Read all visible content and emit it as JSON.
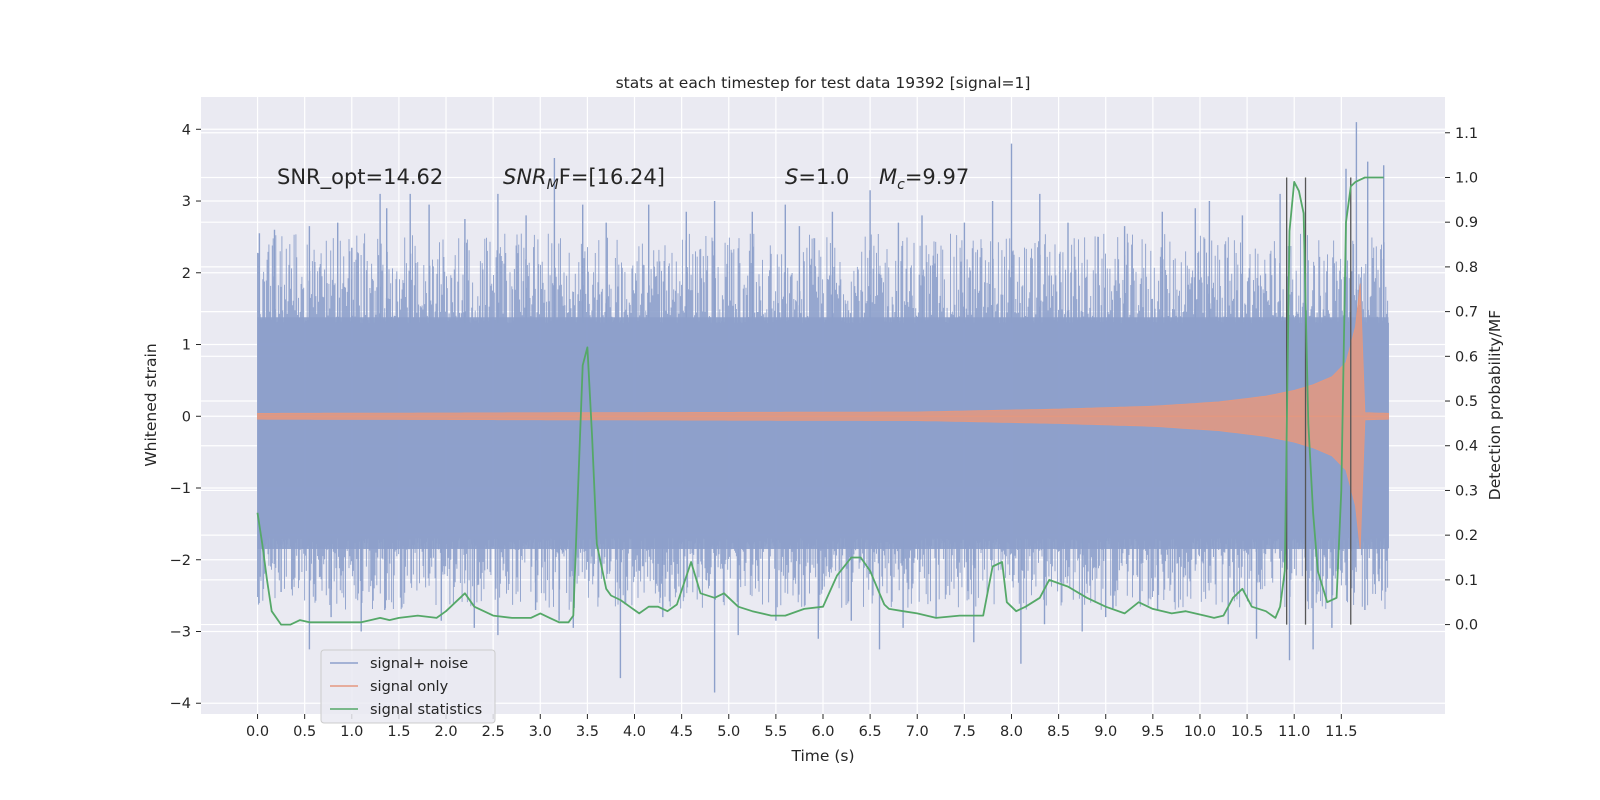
{
  "chart_data": {
    "type": "line",
    "title": "stats at each timestep for test data 19392 [signal=1]",
    "xlabel": "Time (s)",
    "ylabel": "Whitened strain",
    "y2label": "Detection probability/MF",
    "xlim": [
      -0.6,
      12.6
    ],
    "ylim": [
      -4.15,
      4.45
    ],
    "y2lim": [
      -0.2,
      1.18
    ],
    "x_ticks": [
      "0.0",
      "0.5",
      "1.0",
      "1.5",
      "2.0",
      "2.5",
      "3.0",
      "3.5",
      "4.0",
      "4.5",
      "5.0",
      "5.5",
      "6.0",
      "6.5",
      "7.0",
      "7.5",
      "8.0",
      "8.5",
      "9.0",
      "9.5",
      "10.0",
      "10.5",
      "11.0",
      "11.5"
    ],
    "y_ticks": [
      "4",
      "3",
      "2",
      "1",
      "0",
      "−1",
      "−2",
      "−3",
      "−4"
    ],
    "y2_ticks": [
      "1.1",
      "1.0",
      "0.9",
      "0.8",
      "0.7",
      "0.6",
      "0.5",
      "0.4",
      "0.3",
      "0.2",
      "0.1",
      "0.0"
    ],
    "grid": true,
    "legend_position": "lower-left",
    "annotations": {
      "snr_opt": "SNR_opt=14.62",
      "snr_mf_sym": "SNR",
      "snr_mf_sub": "M",
      "snr_mf_rest": "F=[16.24]",
      "s_sym": "S",
      "s_rest": "=1.0",
      "mc_sym": "M",
      "mc_sub": "c",
      "mc_rest": "=9.97"
    },
    "series": [
      {
        "name": "signal+ noise",
        "color": "#8da0cb",
        "noise_band": [
          -1.85,
          1.38
        ],
        "time_range": [
          0.0,
          12.0
        ],
        "spikes": [
          [
            0.02,
            2.55
          ],
          [
            0.18,
            2.6
          ],
          [
            0.55,
            2.65
          ],
          [
            0.85,
            2.7
          ],
          [
            1.0,
            2.35
          ],
          [
            1.3,
            3.1
          ],
          [
            1.37,
            2.9
          ],
          [
            1.62,
            3.1
          ],
          [
            1.82,
            2.95
          ],
          [
            2.2,
            2.75
          ],
          [
            2.55,
            3.1
          ],
          [
            2.85,
            2.8
          ],
          [
            3.15,
            3.6
          ],
          [
            3.45,
            2.95
          ],
          [
            3.7,
            2.7
          ],
          [
            4.15,
            2.95
          ],
          [
            4.55,
            2.85
          ],
          [
            4.85,
            3.0
          ],
          [
            5.25,
            2.85
          ],
          [
            5.6,
            2.95
          ],
          [
            5.75,
            2.65
          ],
          [
            6.1,
            2.85
          ],
          [
            6.5,
            3.15
          ],
          [
            6.8,
            2.7
          ],
          [
            7.05,
            2.8
          ],
          [
            7.5,
            2.7
          ],
          [
            7.8,
            3.0
          ],
          [
            8.0,
            3.8
          ],
          [
            8.3,
            3.1
          ],
          [
            8.6,
            2.7
          ],
          [
            9.2,
            2.65
          ],
          [
            9.6,
            2.85
          ],
          [
            9.95,
            2.9
          ],
          [
            10.1,
            3.0
          ],
          [
            10.45,
            2.8
          ],
          [
            10.85,
            3.1
          ],
          [
            11.55,
            3.45
          ],
          [
            11.66,
            4.1
          ],
          [
            11.78,
            3.55
          ],
          [
            11.95,
            3.5
          ],
          [
            0.25,
            -2.45
          ],
          [
            0.55,
            -3.25
          ],
          [
            0.78,
            -2.8
          ],
          [
            1.1,
            -3.0
          ],
          [
            1.35,
            -2.7
          ],
          [
            1.95,
            -2.85
          ],
          [
            2.3,
            -2.95
          ],
          [
            2.55,
            -3.05
          ],
          [
            2.95,
            -2.7
          ],
          [
            3.2,
            -2.85
          ],
          [
            3.35,
            -2.95
          ],
          [
            3.85,
            -3.65
          ],
          [
            4.3,
            -2.8
          ],
          [
            4.85,
            -3.85
          ],
          [
            5.1,
            -3.05
          ],
          [
            5.5,
            -2.85
          ],
          [
            5.95,
            -3.1
          ],
          [
            6.3,
            -2.85
          ],
          [
            6.6,
            -3.25
          ],
          [
            6.85,
            -2.95
          ],
          [
            7.2,
            -2.8
          ],
          [
            7.6,
            -3.15
          ],
          [
            8.1,
            -3.45
          ],
          [
            8.35,
            -2.9
          ],
          [
            8.75,
            -3.0
          ],
          [
            9.0,
            -2.8
          ],
          [
            9.55,
            -2.7
          ],
          [
            10.3,
            -2.9
          ],
          [
            10.6,
            -3.1
          ],
          [
            10.95,
            -3.4
          ],
          [
            11.2,
            -3.25
          ],
          [
            11.4,
            -2.95
          ],
          [
            11.75,
            -2.7
          ],
          [
            11.9,
            -2.3
          ]
        ]
      },
      {
        "name": "signal only",
        "color": "#e5987f",
        "envelope": {
          "t": [
            0.0,
            7.0,
            8.5,
            9.5,
            10.2,
            10.7,
            11.0,
            11.2,
            11.4,
            11.55,
            11.65,
            11.7,
            11.75,
            12.0
          ],
          "amp": [
            0.04,
            0.06,
            0.1,
            0.14,
            0.2,
            0.28,
            0.36,
            0.44,
            0.55,
            0.75,
            1.25,
            1.85,
            0.05,
            0.04
          ]
        }
      },
      {
        "name": "signal statistics",
        "color": "#55a868",
        "x": [
          0.0,
          0.05,
          0.1,
          0.15,
          0.25,
          0.35,
          0.45,
          0.55,
          0.7,
          0.9,
          1.1,
          1.2,
          1.3,
          1.4,
          1.5,
          1.7,
          1.9,
          2.0,
          2.1,
          2.2,
          2.3,
          2.5,
          2.7,
          2.9,
          3.0,
          3.1,
          3.2,
          3.3,
          3.35,
          3.4,
          3.45,
          3.5,
          3.55,
          3.6,
          3.7,
          3.75,
          3.85,
          3.95,
          4.05,
          4.15,
          4.25,
          4.35,
          4.45,
          4.6,
          4.7,
          4.85,
          4.95,
          5.1,
          5.25,
          5.45,
          5.6,
          5.8,
          6.0,
          6.15,
          6.3,
          6.4,
          6.5,
          6.6,
          6.65,
          6.7,
          6.85,
          7.0,
          7.2,
          7.45,
          7.7,
          7.8,
          7.9,
          7.95,
          8.05,
          8.15,
          8.3,
          8.4,
          8.6,
          8.8,
          9.0,
          9.2,
          9.35,
          9.5,
          9.7,
          9.85,
          10.05,
          10.15,
          10.25,
          10.35,
          10.45,
          10.55,
          10.7,
          10.8,
          10.85,
          10.9,
          10.95,
          11.0,
          11.05,
          11.1,
          11.15,
          11.2,
          11.25,
          11.35,
          11.45,
          11.5,
          11.55,
          11.6,
          11.65,
          11.7,
          11.75,
          11.8,
          11.95
        ],
        "values": [
          0.25,
          0.18,
          0.1,
          0.03,
          0.0,
          0.0,
          0.01,
          0.005,
          0.005,
          0.005,
          0.005,
          0.01,
          0.015,
          0.01,
          0.015,
          0.02,
          0.015,
          0.03,
          0.05,
          0.07,
          0.04,
          0.02,
          0.015,
          0.015,
          0.025,
          0.015,
          0.005,
          0.005,
          0.02,
          0.3,
          0.58,
          0.62,
          0.42,
          0.18,
          0.08,
          0.065,
          0.055,
          0.04,
          0.025,
          0.04,
          0.04,
          0.03,
          0.045,
          0.14,
          0.07,
          0.06,
          0.07,
          0.04,
          0.03,
          0.02,
          0.02,
          0.035,
          0.04,
          0.11,
          0.15,
          0.15,
          0.12,
          0.07,
          0.045,
          0.035,
          0.03,
          0.025,
          0.015,
          0.02,
          0.02,
          0.13,
          0.14,
          0.05,
          0.03,
          0.04,
          0.06,
          0.1,
          0.085,
          0.06,
          0.04,
          0.025,
          0.05,
          0.035,
          0.025,
          0.03,
          0.02,
          0.015,
          0.02,
          0.06,
          0.08,
          0.04,
          0.03,
          0.015,
          0.04,
          0.12,
          0.88,
          0.99,
          0.97,
          0.92,
          0.45,
          0.25,
          0.12,
          0.05,
          0.06,
          0.3,
          0.9,
          0.98,
          0.99,
          0.995,
          1.0,
          1.0,
          1.0
        ]
      }
    ],
    "markers": {
      "x": [
        10.92,
        11.12,
        11.6
      ],
      "y_range": [
        0.0,
        1.0
      ],
      "color": "#555555"
    }
  }
}
